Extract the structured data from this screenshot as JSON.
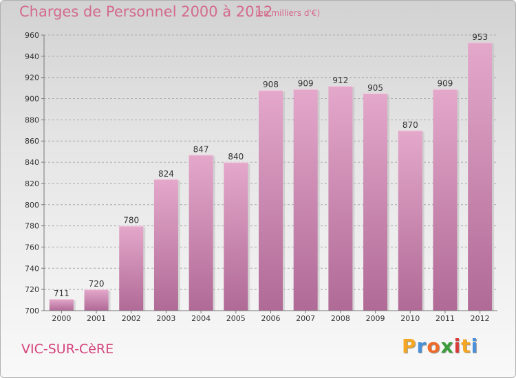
{
  "chart_data": {
    "type": "bar",
    "title": "Charges de Personnel 2000 à 2012",
    "subtitle": "(en milliers d'€)",
    "categories": [
      "2000",
      "2001",
      "2002",
      "2003",
      "2004",
      "2005",
      "2006",
      "2007",
      "2008",
      "2009",
      "2010",
      "2011",
      "2012"
    ],
    "values": [
      711,
      720,
      780,
      824,
      847,
      840,
      908,
      909,
      912,
      905,
      870,
      909,
      953
    ],
    "ylim": [
      700,
      960
    ],
    "yticks": [
      700,
      720,
      740,
      760,
      780,
      800,
      820,
      840,
      860,
      880,
      900,
      920,
      940,
      960
    ],
    "grid": true,
    "bar_color": "#c96a9a",
    "xlabel": "",
    "ylabel": ""
  },
  "footer": {
    "town": "VIC-SUR-CèRE",
    "logo_letters": [
      "P",
      "r",
      "o",
      "x",
      "i",
      "t",
      "i"
    ],
    "logo_colors": [
      "#f5a623",
      "#4a90d9",
      "#f06b2a",
      "#3a9d3a",
      "#d93a3a",
      "#f5a623",
      "#4a90d9"
    ]
  }
}
